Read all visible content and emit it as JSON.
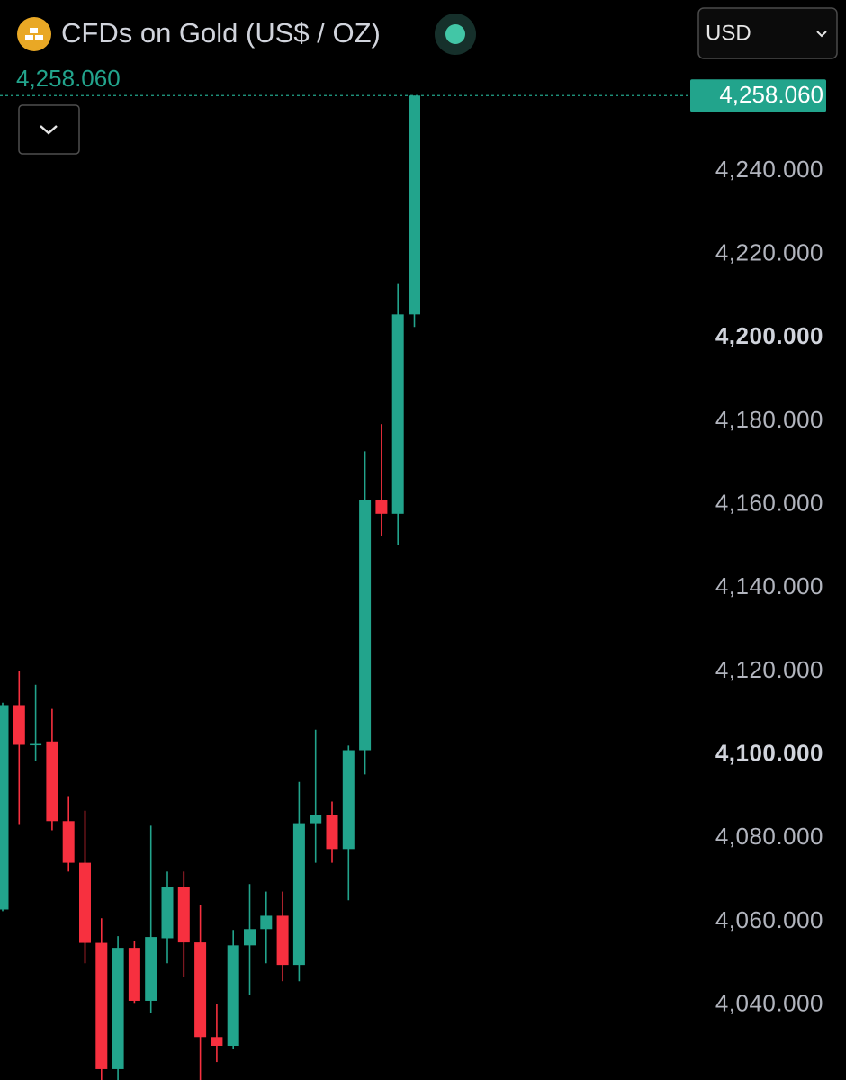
{
  "chart_data": {
    "type": "candlestick",
    "title": "CFDs on Gold (US$ / OZ)",
    "currency": "USD",
    "last_price": {
      "value": 4258.06,
      "label": "4,258.060"
    },
    "up_color": "#22a48c",
    "down_color": "#f7303f",
    "ylim": [
      4022,
      4281
    ],
    "yticks": [
      {
        "value": 4040,
        "label": "4,040.000"
      },
      {
        "value": 4060,
        "label": "4,060.000"
      },
      {
        "value": 4080,
        "label": "4,080.000"
      },
      {
        "value": 4100,
        "label": "4,100.000"
      },
      {
        "value": 4120,
        "label": "4,120.000"
      },
      {
        "value": 4140,
        "label": "4,140.000"
      },
      {
        "value": 4160,
        "label": "4,160.000"
      },
      {
        "value": 4180,
        "label": "4,180.000"
      },
      {
        "value": 4200,
        "label": "4,200.000"
      },
      {
        "value": 4220,
        "label": "4,220.000"
      },
      {
        "value": 4240,
        "label": "4,240.000"
      }
    ],
    "open": [
      4062.9,
      4111.9,
      4102.5,
      4103.2,
      4084.1,
      4074.1,
      4054.9,
      4024.6,
      4053.7,
      4041.0,
      4056.0,
      4068.3,
      4055.0,
      4032.3,
      4030.2,
      4054.3,
      4058.2,
      4061.4,
      4049.6,
      4083.6,
      4085.6,
      4077.4,
      4101.1,
      4161.0,
      4157.8,
      4205.6
    ],
    "high": [
      4112.5,
      4120.0,
      4116.8,
      4111.0,
      4090.1,
      4086.6,
      4060.8,
      4056.5,
      4055.4,
      4083.0,
      4072.0,
      4072.0,
      4064.0,
      4040.3,
      4058.0,
      4069.0,
      4067.2,
      4067.2,
      4093.5,
      4106.0,
      4088.8,
      4102.2,
      4172.8,
      4179.3,
      4213.1,
      4258.06
    ],
    "low": [
      4062.5,
      4083.2,
      4098.5,
      4081.9,
      4072.0,
      4050.0,
      4022,
      4022,
      4040.5,
      4038.0,
      4050.0,
      4046.8,
      4022,
      4026.3,
      4029.5,
      4042.5,
      4050.0,
      4045.7,
      4045.7,
      4074.1,
      4074.1,
      4065.1,
      4095.3,
      4152.4,
      4150.2,
      4202.6
    ],
    "close": [
      4111.9,
      4102.4,
      4102.6,
      4084.1,
      4074.1,
      4054.9,
      4024.6,
      4053.7,
      4041.0,
      4056.3,
      4068.3,
      4055.0,
      4032.3,
      4030.2,
      4054.3,
      4058.2,
      4061.4,
      4049.6,
      4083.6,
      4085.6,
      4077.4,
      4101.1,
      4161.0,
      4157.8,
      4205.6,
      4258.06
    ]
  }
}
